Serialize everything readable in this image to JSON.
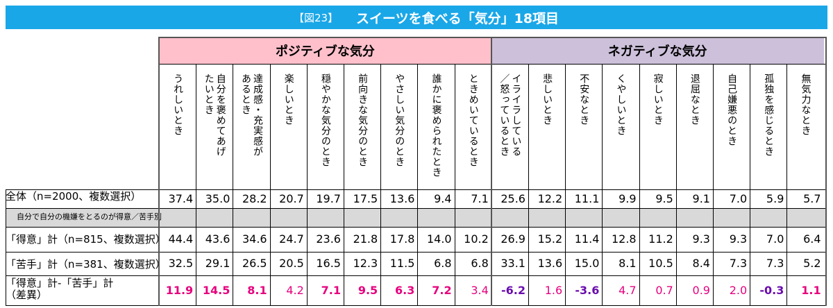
{
  "title": {
    "figure": "【図23】",
    "main": "スイーツを食べる「気分」18項目"
  },
  "chart_data": {
    "type": "table",
    "groups": [
      {
        "name": "ポジティブな気分",
        "count": 9,
        "color": "#ffc0cb"
      },
      {
        "name": "ネガティブな気分",
        "count": 9,
        "color": "#ccc0da"
      }
    ],
    "columns": [
      "うれしいとき",
      "自分を褒めてあげ\nたいとき",
      "達成感・充実感が\nあるとき",
      "楽しいとき",
      "穏やかな気分のとき",
      "前向きな気分のとき",
      "やさしい気分のとき",
      "誰かに褒められたとき",
      "ときめいているとき",
      "イライラしている\n／怒っているとき",
      "悲しいとき",
      "不安なとき",
      "くやしいとき",
      "寂しいとき",
      "退屈なとき",
      "自己嫌悪のとき",
      "孤独を感じるとき",
      "無気力なとき"
    ],
    "rows": [
      {
        "label": "全体（n=2000、複数選択）",
        "values": [
          37.4,
          35.0,
          28.2,
          20.7,
          19.7,
          17.5,
          13.6,
          9.4,
          7.1,
          25.6,
          12.2,
          11.1,
          9.9,
          9.5,
          9.1,
          7.0,
          5.9,
          5.7
        ]
      },
      {
        "label": "「得意」計（n=815、複数選択）",
        "values": [
          44.4,
          43.6,
          34.6,
          24.7,
          23.6,
          21.8,
          17.8,
          14.0,
          10.2,
          26.9,
          15.2,
          11.4,
          12.8,
          11.2,
          9.3,
          9.3,
          7.0,
          6.4
        ]
      },
      {
        "label": "「苦手」計（n=381、複数選択）",
        "values": [
          32.5,
          29.1,
          26.5,
          20.5,
          16.5,
          12.3,
          11.5,
          6.8,
          6.8,
          33.1,
          13.6,
          15.0,
          8.1,
          10.5,
          8.4,
          7.3,
          7.3,
          5.2
        ]
      },
      {
        "label": "「得意」計-「苦手」計\n（差異）",
        "values": [
          11.9,
          14.5,
          8.1,
          4.2,
          7.1,
          9.5,
          6.3,
          7.2,
          3.4,
          -6.2,
          1.6,
          -3.6,
          4.7,
          0.7,
          0.9,
          2.0,
          -0.3,
          1.1
        ]
      }
    ],
    "subheader": "自分で自分の機嫌をとるのが得意／苦手別",
    "diff_emphasis": [
      true,
      true,
      true,
      false,
      true,
      true,
      true,
      true,
      false,
      true,
      false,
      true,
      false,
      false,
      false,
      false,
      true,
      true
    ],
    "colors": {
      "positive": "#e6007e",
      "negative": "#6a0dad",
      "title_bar": "#1aa7e8",
      "subheader": "#d9d9d9"
    }
  }
}
